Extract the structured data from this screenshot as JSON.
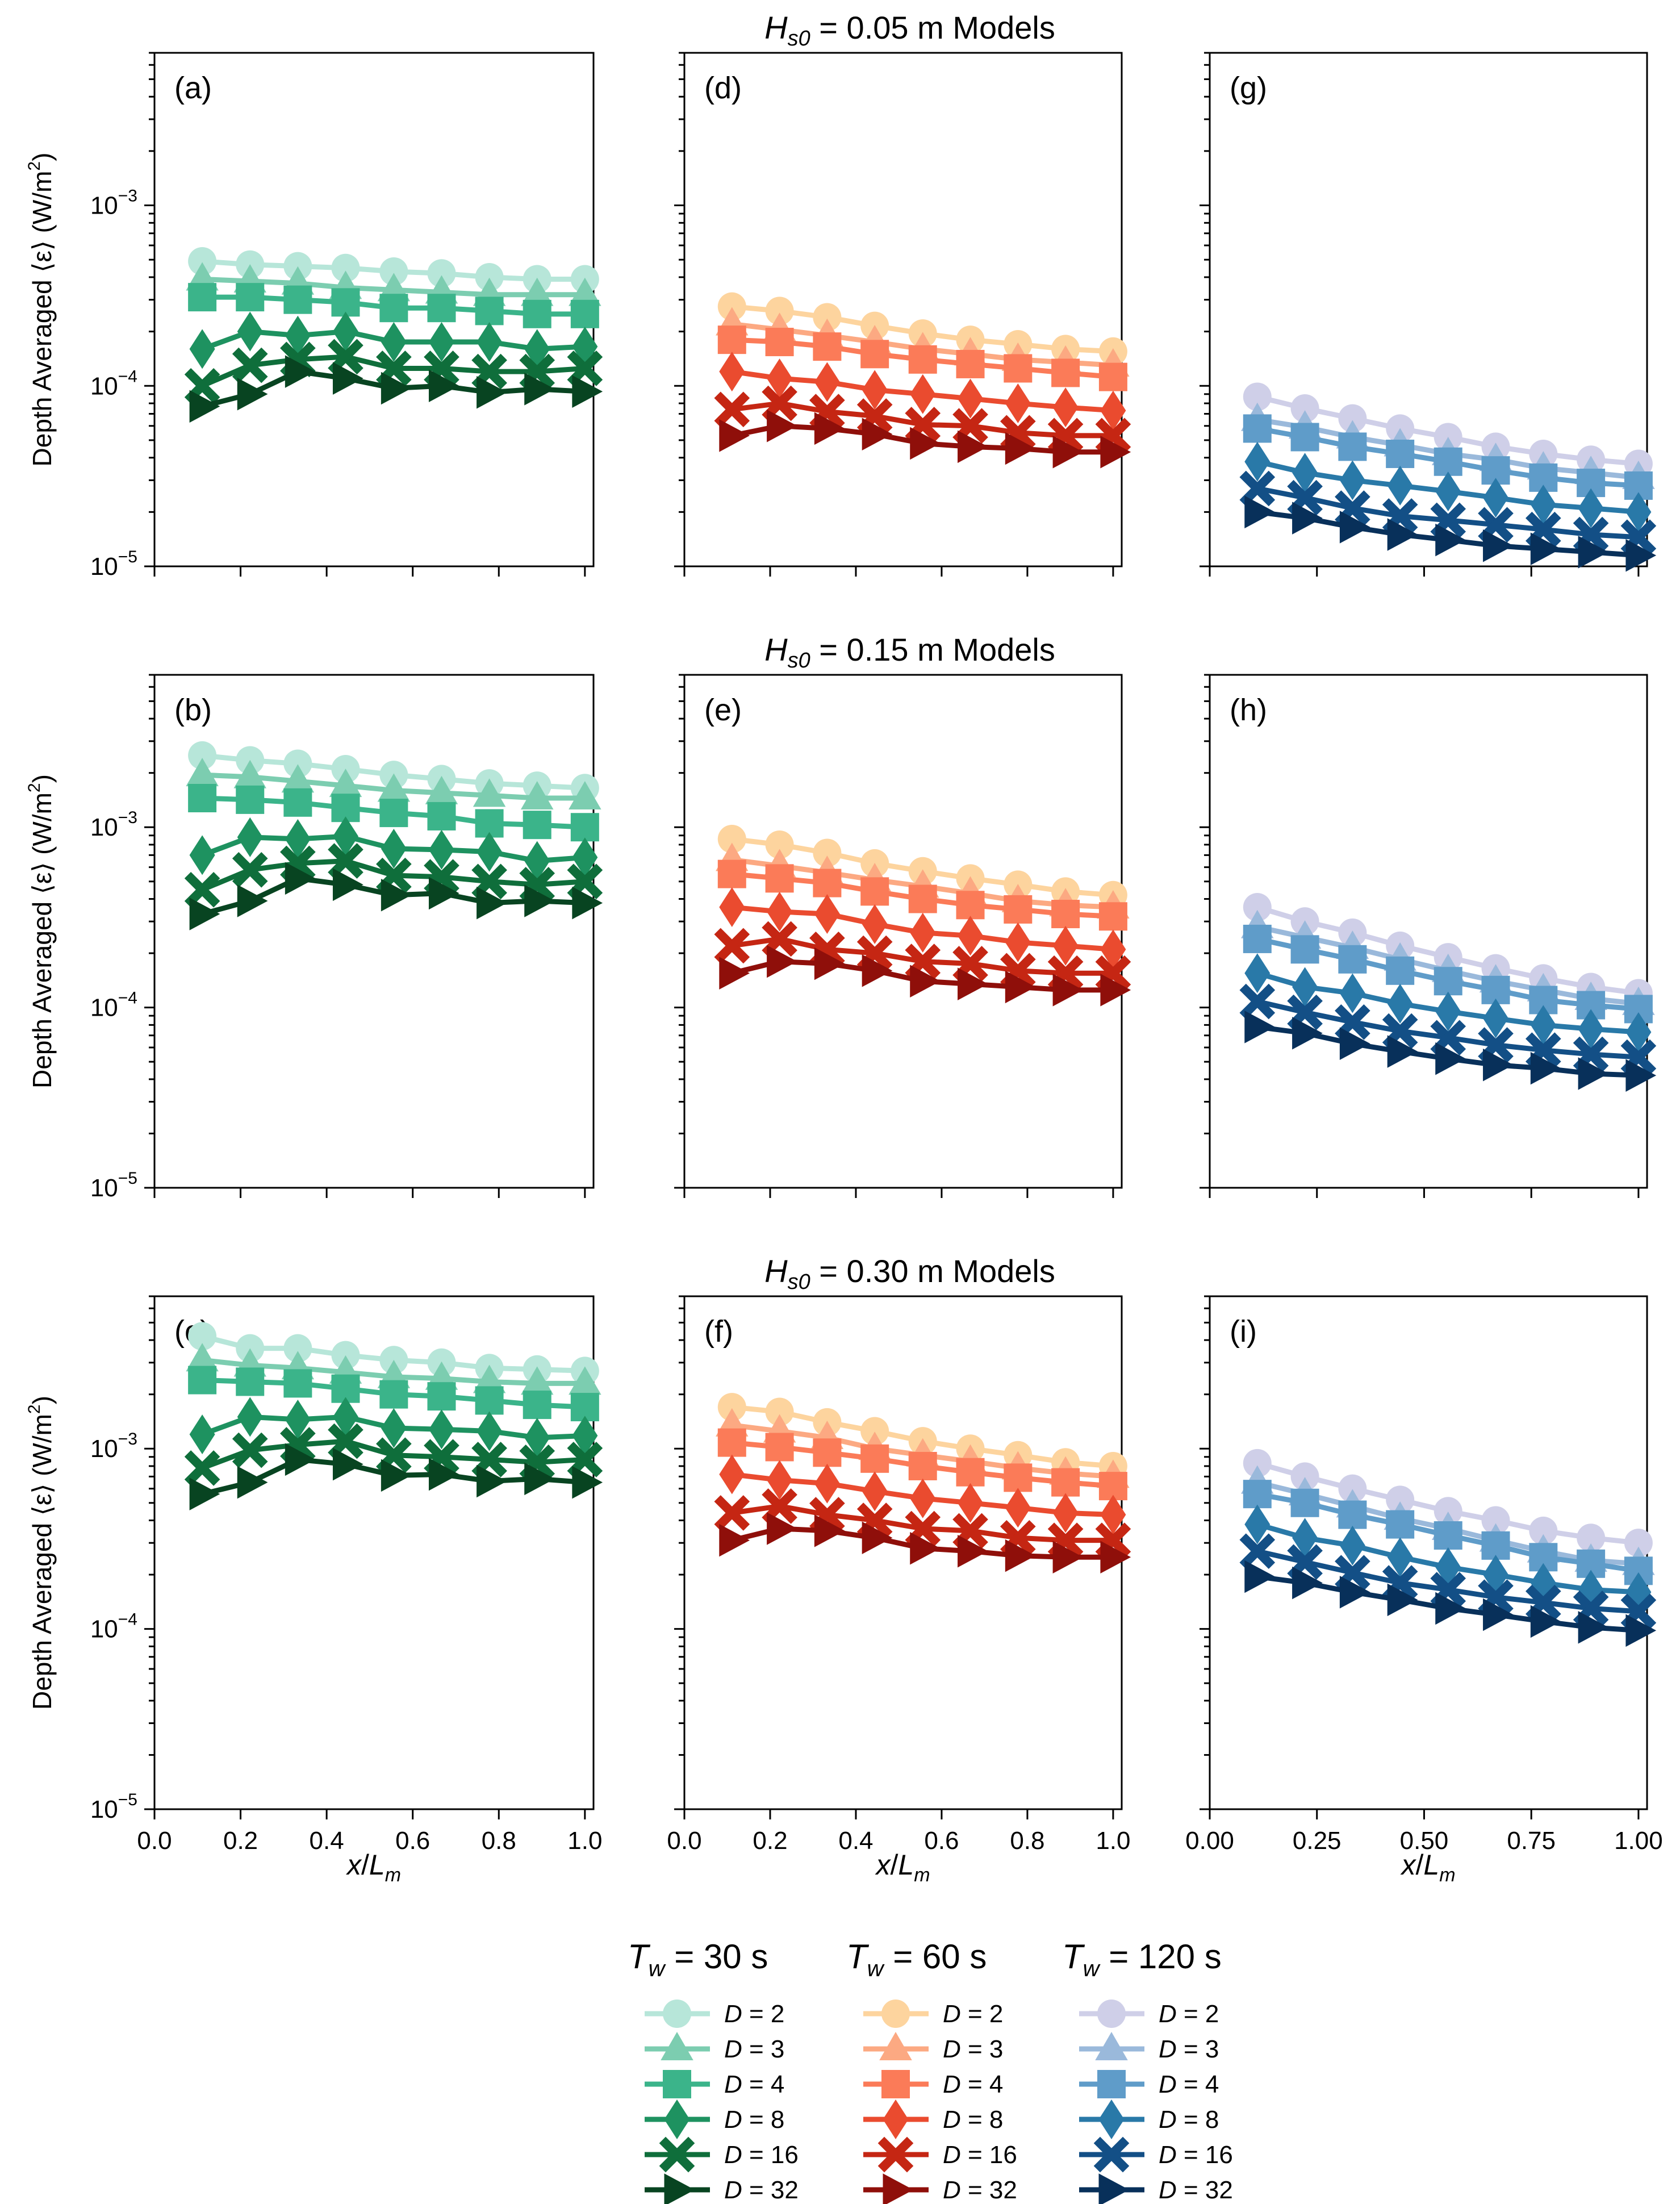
{
  "figure": {
    "row_titles": [
      {
        "sym": "H",
        "sub": "s0",
        "text": " = 0.05 m Models"
      },
      {
        "sym": "H",
        "sub": "s0",
        "text": " = 0.15 m Models"
      },
      {
        "sym": "H",
        "sub": "s0",
        "text": " = 0.30 m Models"
      }
    ],
    "ylabel": {
      "pre": "Depth Averaged ⟨ε⟩  (W/m",
      "sup": "2",
      "post": ")"
    },
    "xlabel": {
      "a": "x",
      "slash": "/",
      "b": "L",
      "sub": "m"
    },
    "ytick_labels": [
      {
        "base": "10",
        "exp": "−3"
      },
      {
        "base": "10",
        "exp": "−4"
      },
      {
        "base": "10",
        "exp": "−5"
      }
    ],
    "xtick_labels_cols_1_2": [
      "0.0",
      "0.2",
      "0.4",
      "0.6",
      "0.8",
      "1.0"
    ],
    "xtick_labels_col_3": [
      "0.00",
      "0.25",
      "0.50",
      "0.75",
      "1.00"
    ],
    "colors": {
      "T30": [
        "#b7e6d9",
        "#7ccdb0",
        "#3bb48a",
        "#1e9260",
        "#0f6e3b",
        "#084421"
      ],
      "T60": [
        "#fdd49e",
        "#fca982",
        "#fb7b58",
        "#ea4b2f",
        "#c52613",
        "#8f0f0a"
      ],
      "T120": [
        "#cfcfe8",
        "#9ab9db",
        "#5f9cc9",
        "#2979a8",
        "#134f86",
        "#08305a"
      ]
    },
    "legend": {
      "groups": [
        {
          "title": {
            "sym": "T",
            "sub": "w",
            "text": " = 30 s"
          },
          "color_key": "T30",
          "labels": [
            "D = 2",
            "D = 3",
            "D = 4",
            "D = 8",
            "D = 16",
            "D = 32"
          ]
        },
        {
          "title": {
            "sym": "T",
            "sub": "w",
            "text": " = 60 s"
          },
          "color_key": "T60",
          "labels": [
            "D = 2",
            "D = 3",
            "D = 4",
            "D = 8",
            "D = 16",
            "D = 32"
          ]
        },
        {
          "title": {
            "sym": "T",
            "sub": "w",
            "text": " = 120 s"
          },
          "color_key": "T120",
          "labels": [
            "D = 2",
            "D = 3",
            "D = 4",
            "D = 8",
            "D = 16",
            "D = 32"
          ]
        }
      ]
    }
  },
  "chart_data": {
    "type": "line",
    "x": [
      0.111,
      0.222,
      0.333,
      0.444,
      0.556,
      0.667,
      0.778,
      0.889,
      1.0
    ],
    "xlabel": "x/Lm",
    "ylabel": "Depth Averaged ⟨ε⟩ (W/m2)",
    "yscale": "log",
    "ylim": [
      1e-05,
      0.007
    ],
    "series_names": [
      "D = 2",
      "D = 3",
      "D = 4",
      "D = 8",
      "D = 16",
      "D = 32"
    ],
    "markers": [
      "circle",
      "triangle",
      "square",
      "diamond",
      "x",
      "right-triangle"
    ],
    "panels": [
      {
        "label": "(a)",
        "Hs0": 0.05,
        "Tw": 30,
        "color_key": "T30",
        "series": [
          [
            0.00049,
            0.00047,
            0.00046,
            0.00045,
            0.00043,
            0.00042,
            0.0004,
            0.00039,
            0.00039
          ],
          [
            0.00039,
            0.00038,
            0.00037,
            0.00035,
            0.00034,
            0.00033,
            0.00032,
            0.00032,
            0.00032
          ],
          [
            0.00031,
            0.00031,
            0.0003,
            0.00029,
            0.00027,
            0.00027,
            0.00026,
            0.00025,
            0.00025
          ],
          [
            0.00016,
            0.0002,
            0.00019,
            0.0002,
            0.000175,
            0.000175,
            0.000175,
            0.00016,
            0.000165
          ],
          [
            0.0001,
            0.00013,
            0.00014,
            0.000145,
            0.000125,
            0.000125,
            0.00012,
            0.00012,
            0.000125
          ],
          [
            7.7e-05,
            9e-05,
            0.00012,
            0.00011,
            9.7e-05,
            0.0001,
            9.2e-05,
            9.6e-05,
            9.3e-05
          ]
        ]
      },
      {
        "label": "(b)",
        "Hs0": 0.15,
        "Tw": 30,
        "color_key": "T30",
        "series": [
          [
            0.0025,
            0.00235,
            0.00225,
            0.0021,
            0.00195,
            0.00185,
            0.00175,
            0.0017,
            0.00165
          ],
          [
            0.00195,
            0.0019,
            0.0018,
            0.0017,
            0.0016,
            0.00155,
            0.0015,
            0.00145,
            0.00145
          ],
          [
            0.00145,
            0.00142,
            0.00137,
            0.00128,
            0.0012,
            0.00115,
            0.00105,
            0.00103,
            0.001
          ],
          [
            0.0007,
            0.00088,
            0.00086,
            0.00089,
            0.00076,
            0.00075,
            0.00073,
            0.00065,
            0.00068
          ],
          [
            0.00045,
            0.00058,
            0.00063,
            0.00065,
            0.00054,
            0.00053,
            0.0005,
            0.00048,
            0.0005
          ],
          [
            0.00033,
            0.00039,
            0.00052,
            0.00048,
            0.00042,
            0.00043,
            0.00038,
            0.00039,
            0.00038
          ]
        ]
      },
      {
        "label": "(c)",
        "Hs0": 0.3,
        "Tw": 30,
        "color_key": "T30",
        "series": [
          [
            0.0042,
            0.0036,
            0.0036,
            0.0033,
            0.0031,
            0.003,
            0.0028,
            0.00275,
            0.0027
          ],
          [
            0.0031,
            0.0029,
            0.0028,
            0.00265,
            0.0025,
            0.00245,
            0.00235,
            0.0023,
            0.0023
          ],
          [
            0.0024,
            0.00235,
            0.0023,
            0.00215,
            0.002,
            0.00195,
            0.00185,
            0.00175,
            0.0017
          ],
          [
            0.0012,
            0.0015,
            0.00145,
            0.0015,
            0.0013,
            0.00128,
            0.00125,
            0.00115,
            0.00118
          ],
          [
            0.00078,
            0.00098,
            0.00105,
            0.0011,
            0.00092,
            0.0009,
            0.00087,
            0.00084,
            0.00087
          ],
          [
            0.00056,
            0.00065,
            0.00087,
            0.00082,
            0.00071,
            0.00072,
            0.00066,
            0.00068,
            0.00065
          ]
        ]
      },
      {
        "label": "(d)",
        "Hs0": 0.05,
        "Tw": 60,
        "color_key": "T60",
        "series": [
          [
            0.000275,
            0.00026,
            0.00024,
            0.000215,
            0.000195,
            0.00018,
            0.00017,
            0.00016,
            0.000155
          ],
          [
            0.00022,
            0.000205,
            0.00019,
            0.000175,
            0.00016,
            0.00015,
            0.00014,
            0.000135,
            0.00013
          ],
          [
            0.00018,
            0.000175,
            0.000165,
            0.00015,
            0.00014,
            0.000132,
            0.000125,
            0.000118,
            0.000112
          ],
          [
            0.00012,
            0.00011,
            0.000105,
            9.5e-05,
            9e-05,
            8.5e-05,
            8e-05,
            7.6e-05,
            7.3e-05
          ],
          [
            7.4e-05,
            8e-05,
            7.2e-05,
            6.8e-05,
            6.1e-05,
            6e-05,
            5.5e-05,
            5.3e-05,
            5.3e-05
          ],
          [
            5.3e-05,
            6e-05,
            5.8e-05,
            5.4e-05,
            4.8e-05,
            4.6e-05,
            4.5e-05,
            4.3e-05,
            4.3e-05
          ]
        ]
      },
      {
        "label": "(e)",
        "Hs0": 0.15,
        "Tw": 60,
        "color_key": "T60",
        "series": [
          [
            0.00086,
            0.0008,
            0.00072,
            0.00063,
            0.00057,
            0.00052,
            0.00048,
            0.00044,
            0.00042
          ],
          [
            0.00066,
            0.00061,
            0.00056,
            0.00051,
            0.00047,
            0.00043,
            0.00039,
            0.00037,
            0.00036
          ],
          [
            0.00055,
            0.00052,
            0.00049,
            0.00044,
            0.0004,
            0.00037,
            0.00035,
            0.00033,
            0.00032
          ],
          [
            0.00036,
            0.00034,
            0.00033,
            0.00029,
            0.00026,
            0.00025,
            0.00023,
            0.00022,
            0.00021
          ],
          [
            0.00022,
            0.00024,
            0.00021,
            0.0002,
            0.00018,
            0.000175,
            0.00016,
            0.000155,
            0.000155
          ],
          [
            0.000155,
            0.00018,
            0.000175,
            0.00016,
            0.00014,
            0.000135,
            0.00013,
            0.000125,
            0.000125
          ]
        ]
      },
      {
        "label": "(f)",
        "Hs0": 0.3,
        "Tw": 60,
        "color_key": "T60",
        "series": [
          [
            0.0017,
            0.0016,
            0.0014,
            0.00125,
            0.0011,
            0.001,
            0.00092,
            0.00084,
            0.0008
          ],
          [
            0.00135,
            0.00125,
            0.00115,
            0.001,
            0.00092,
            0.00085,
            0.00078,
            0.00073,
            0.0007
          ],
          [
            0.00108,
            0.00102,
            0.00095,
            0.00088,
            0.0008,
            0.00074,
            0.00069,
            0.00065,
            0.00062
          ],
          [
            0.00072,
            0.00067,
            0.00064,
            0.00058,
            0.00053,
            0.0005,
            0.00047,
            0.00044,
            0.00043
          ],
          [
            0.00044,
            0.00048,
            0.00043,
            0.0004,
            0.00036,
            0.00035,
            0.00032,
            0.00031,
            0.00031
          ],
          [
            0.00031,
            0.00036,
            0.00035,
            0.00032,
            0.00028,
            0.00027,
            0.000255,
            0.00025,
            0.00025
          ]
        ]
      },
      {
        "label": "(g)",
        "Hs0": 0.05,
        "Tw": 120,
        "color_key": "T120",
        "series": [
          [
            8.7e-05,
            7.5e-05,
            6.6e-05,
            5.8e-05,
            5.2e-05,
            4.6e-05,
            4.2e-05,
            3.9e-05,
            3.7e-05
          ],
          [
            6.5e-05,
            5.9e-05,
            5.2e-05,
            4.7e-05,
            4.2e-05,
            3.9e-05,
            3.5e-05,
            3.3e-05,
            3.1e-05
          ],
          [
            5.8e-05,
            5.2e-05,
            4.6e-05,
            4.2e-05,
            3.8e-05,
            3.4e-05,
            3.1e-05,
            2.9e-05,
            2.8e-05
          ],
          [
            3.8e-05,
            3.3e-05,
            3e-05,
            2.8e-05,
            2.6e-05,
            2.4e-05,
            2.2e-05,
            2.1e-05,
            2e-05
          ],
          [
            2.7e-05,
            2.4e-05,
            2.1e-05,
            1.9e-05,
            1.8e-05,
            1.7e-05,
            1.6e-05,
            1.5e-05,
            1.45e-05
          ],
          [
            2e-05,
            1.85e-05,
            1.65e-05,
            1.5e-05,
            1.4e-05,
            1.3e-05,
            1.25e-05,
            1.2e-05,
            1.15e-05
          ]
        ]
      },
      {
        "label": "(h)",
        "Hs0": 0.15,
        "Tw": 120,
        "color_key": "T120",
        "series": [
          [
            0.00036,
            0.0003,
            0.00026,
            0.00022,
            0.00019,
            0.000165,
            0.000145,
            0.00013,
            0.00012
          ],
          [
            0.00028,
            0.000245,
            0.000215,
            0.000185,
            0.00016,
            0.00014,
            0.000125,
            0.000112,
            0.000105
          ],
          [
            0.00024,
            0.00021,
            0.000185,
            0.00016,
            0.00014,
            0.000125,
            0.00011,
            0.000103,
            9.8e-05
          ],
          [
            0.000155,
            0.00013,
            0.00012,
            0.000105,
            9.5e-05,
            8.7e-05,
            8e-05,
            7.6e-05,
            7.3e-05
          ],
          [
            0.000108,
            9.4e-05,
            8.3e-05,
            7.4e-05,
            6.8e-05,
            6.2e-05,
            5.8e-05,
            5.5e-05,
            5.3e-05
          ],
          [
            7.8e-05,
            7.2e-05,
            6.3e-05,
            5.7e-05,
            5.2e-05,
            4.8e-05,
            4.6e-05,
            4.3e-05,
            4.2e-05
          ]
        ]
      },
      {
        "label": "(i)",
        "Hs0": 0.3,
        "Tw": 120,
        "color_key": "T120",
        "series": [
          [
            0.00083,
            0.0007,
            0.0006,
            0.00052,
            0.00045,
            0.0004,
            0.00035,
            0.00032,
            0.0003
          ],
          [
            0.00065,
            0.00056,
            0.00048,
            0.00041,
            0.00036,
            0.00031,
            0.00027,
            0.00024,
            0.00023
          ],
          [
            0.00056,
            0.0005,
            0.00043,
            0.00038,
            0.00033,
            0.00029,
            0.00025,
            0.00023,
            0.00021
          ],
          [
            0.00038,
            0.00032,
            0.00029,
            0.00025,
            0.00022,
            0.0002,
            0.00018,
            0.000165,
            0.00016
          ],
          [
            0.00027,
            0.000235,
            0.000205,
            0.00018,
            0.000165,
            0.00015,
            0.00014,
            0.00013,
            0.000125
          ],
          [
            0.000195,
            0.00018,
            0.00016,
            0.000145,
            0.00013,
            0.00012,
            0.00011,
            0.000102,
            9.8e-05
          ]
        ]
      }
    ]
  }
}
